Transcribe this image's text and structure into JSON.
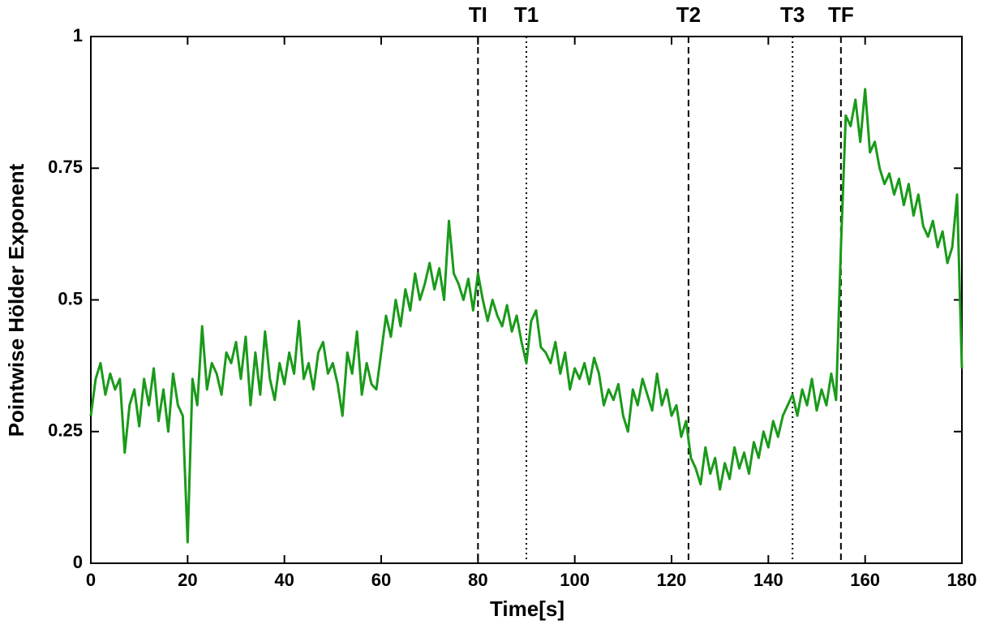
{
  "chart_data": {
    "type": "line",
    "xlabel": "Time[s]",
    "ylabel": "Pointwise Hölder Exponent",
    "xlim": [
      0,
      180
    ],
    "ylim": [
      0,
      1
    ],
    "xticks": [
      0,
      20,
      40,
      60,
      80,
      100,
      120,
      140,
      160,
      180
    ],
    "yticks": [
      0,
      0.25,
      0.5,
      0.75,
      1
    ],
    "markers": [
      {
        "label": "TI",
        "x": 80,
        "style": "dashed"
      },
      {
        "label": "T1",
        "x": 90,
        "style": "dotted"
      },
      {
        "label": "T2",
        "x": 123.5,
        "style": "dashed"
      },
      {
        "label": "T3",
        "x": 145,
        "style": "dotted"
      },
      {
        "label": "TF",
        "x": 155,
        "style": "dashed"
      }
    ],
    "x": [
      0,
      1,
      2,
      3,
      4,
      5,
      6,
      7,
      8,
      9,
      10,
      11,
      12,
      13,
      14,
      15,
      16,
      17,
      18,
      19,
      20,
      21,
      22,
      23,
      24,
      25,
      26,
      27,
      28,
      29,
      30,
      31,
      32,
      33,
      34,
      35,
      36,
      37,
      38,
      39,
      40,
      41,
      42,
      43,
      44,
      45,
      46,
      47,
      48,
      49,
      50,
      51,
      52,
      53,
      54,
      55,
      56,
      57,
      58,
      59,
      60,
      61,
      62,
      63,
      64,
      65,
      66,
      67,
      68,
      69,
      70,
      71,
      72,
      73,
      74,
      75,
      76,
      77,
      78,
      79,
      80,
      81,
      82,
      83,
      84,
      85,
      86,
      87,
      88,
      89,
      90,
      91,
      92,
      93,
      94,
      95,
      96,
      97,
      98,
      99,
      100,
      101,
      102,
      103,
      104,
      105,
      106,
      107,
      108,
      109,
      110,
      111,
      112,
      113,
      114,
      115,
      116,
      117,
      118,
      119,
      120,
      121,
      122,
      123,
      124,
      125,
      126,
      127,
      128,
      129,
      130,
      131,
      132,
      133,
      134,
      135,
      136,
      137,
      138,
      139,
      140,
      141,
      142,
      143,
      144,
      145,
      146,
      147,
      148,
      149,
      150,
      151,
      152,
      153,
      154,
      155,
      156,
      157,
      158,
      159,
      160,
      161,
      162,
      163,
      164,
      165,
      166,
      167,
      168,
      169,
      170,
      171,
      172,
      173,
      174,
      175,
      176,
      177,
      178,
      179,
      180
    ],
    "series": [
      {
        "color": "#1a9a1a",
        "values": [
          0.28,
          0.35,
          0.38,
          0.32,
          0.36,
          0.33,
          0.35,
          0.21,
          0.3,
          0.33,
          0.26,
          0.35,
          0.3,
          0.37,
          0.27,
          0.33,
          0.25,
          0.36,
          0.3,
          0.28,
          0.04,
          0.35,
          0.3,
          0.45,
          0.33,
          0.38,
          0.36,
          0.32,
          0.4,
          0.38,
          0.42,
          0.35,
          0.43,
          0.3,
          0.4,
          0.32,
          0.44,
          0.35,
          0.31,
          0.38,
          0.34,
          0.4,
          0.36,
          0.46,
          0.35,
          0.38,
          0.33,
          0.4,
          0.42,
          0.36,
          0.38,
          0.34,
          0.28,
          0.4,
          0.36,
          0.44,
          0.32,
          0.38,
          0.34,
          0.33,
          0.4,
          0.47,
          0.43,
          0.5,
          0.45,
          0.52,
          0.48,
          0.55,
          0.5,
          0.53,
          0.57,
          0.52,
          0.56,
          0.5,
          0.65,
          0.55,
          0.53,
          0.5,
          0.54,
          0.48,
          0.55,
          0.5,
          0.46,
          0.5,
          0.47,
          0.45,
          0.49,
          0.44,
          0.47,
          0.42,
          0.38,
          0.46,
          0.48,
          0.41,
          0.4,
          0.38,
          0.42,
          0.36,
          0.4,
          0.33,
          0.37,
          0.35,
          0.38,
          0.34,
          0.39,
          0.36,
          0.3,
          0.33,
          0.31,
          0.34,
          0.28,
          0.25,
          0.33,
          0.3,
          0.35,
          0.32,
          0.29,
          0.36,
          0.3,
          0.33,
          0.28,
          0.3,
          0.24,
          0.27,
          0.2,
          0.18,
          0.15,
          0.22,
          0.17,
          0.2,
          0.14,
          0.19,
          0.16,
          0.22,
          0.18,
          0.21,
          0.17,
          0.23,
          0.2,
          0.25,
          0.22,
          0.27,
          0.24,
          0.28,
          0.3,
          0.32,
          0.28,
          0.33,
          0.3,
          0.35,
          0.29,
          0.33,
          0.3,
          0.36,
          0.31,
          0.6,
          0.85,
          0.83,
          0.88,
          0.8,
          0.9,
          0.78,
          0.8,
          0.75,
          0.72,
          0.74,
          0.7,
          0.73,
          0.68,
          0.72,
          0.66,
          0.7,
          0.64,
          0.62,
          0.65,
          0.6,
          0.63,
          0.57,
          0.6,
          0.7,
          0.37
        ]
      }
    ]
  }
}
